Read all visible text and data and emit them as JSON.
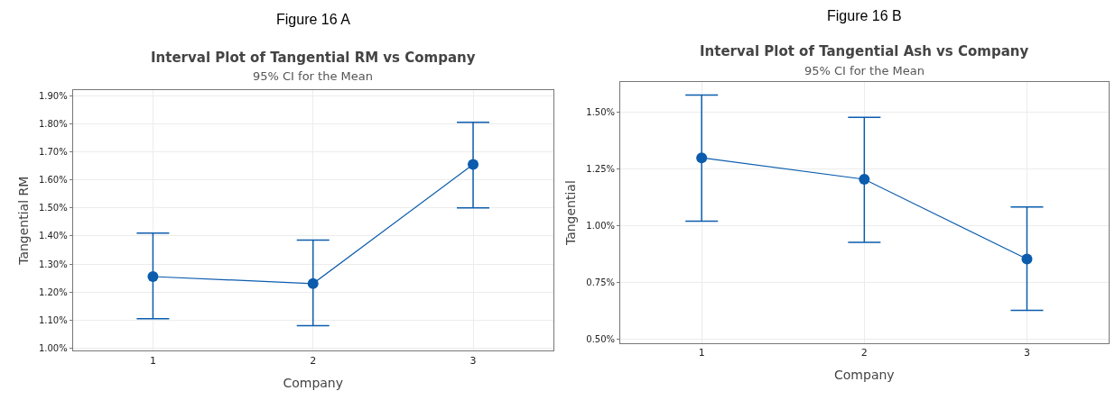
{
  "chart_data": [
    {
      "type": "line",
      "annotations": [
        "Figure 16 A"
      ],
      "title": "Interval Plot of Tangential RM vs Company",
      "subtitle": "95% CI for the Mean",
      "xlabel": "Company",
      "ylabel": "Tangential RM",
      "categories": [
        "1",
        "2",
        "3"
      ],
      "series": [
        {
          "color": "#0b5cad",
          "values": [
            1.255,
            1.23,
            1.655
          ],
          "errors": [
            [
              1.105,
              1.41
            ],
            [
              1.08,
              1.385
            ],
            [
              1.5,
              1.805
            ]
          ]
        }
      ],
      "ylim": [
        0.99,
        1.92
      ],
      "yticks": [
        {
          "value": 1.0,
          "label": "1.00%"
        },
        {
          "value": 1.1,
          "label": "1.10%"
        },
        {
          "value": 1.2,
          "label": "1.20%"
        },
        {
          "value": 1.3,
          "label": "1.30%"
        },
        {
          "value": 1.4,
          "label": "1.40%"
        },
        {
          "value": 1.5,
          "label": "1.50%"
        },
        {
          "value": 1.6,
          "label": "1.60%"
        },
        {
          "value": 1.7,
          "label": "1.70%"
        },
        {
          "value": 1.8,
          "label": "1.80%"
        },
        {
          "value": 1.9,
          "label": "1.90%"
        }
      ],
      "grid": true,
      "marker": "circle",
      "line_style": "solid"
    },
    {
      "type": "line",
      "annotations": [
        "Figure 16 B"
      ],
      "title": "Interval Plot of Tangential Ash vs Company",
      "subtitle": "95% CI for the Mean",
      "xlabel": "Company",
      "ylabel": "Tangential",
      "categories": [
        "1",
        "2",
        "3"
      ],
      "series": [
        {
          "color": "#0b5cad",
          "values": [
            1.3,
            1.205,
            0.853
          ],
          "errors": [
            [
              1.02,
              1.577
            ],
            [
              0.927,
              1.479
            ],
            [
              0.627,
              1.083
            ]
          ]
        }
      ],
      "ylim": [
        0.482,
        1.633
      ],
      "yticks": [
        {
          "value": 0.5,
          "label": "0.50%"
        },
        {
          "value": 0.75,
          "label": "0.75%"
        },
        {
          "value": 1.0,
          "label": "1.00%"
        },
        {
          "value": 1.25,
          "label": "1.25%"
        },
        {
          "value": 1.5,
          "label": "1.50%"
        }
      ],
      "grid": true,
      "marker": "circle",
      "line_style": "solid"
    }
  ]
}
